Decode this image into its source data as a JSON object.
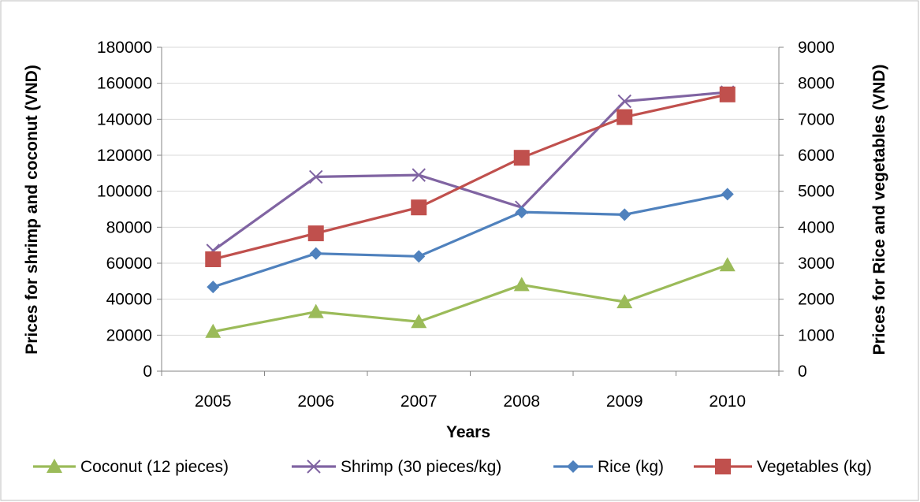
{
  "chart_data": {
    "type": "line",
    "title": "",
    "xlabel": "Years",
    "ylabel_left": "Prices for shrimp and coconut (VND)",
    "ylabel_right": "Prices for Rice and vegetables (VND)",
    "categories": [
      "2005",
      "2006",
      "2007",
      "2008",
      "2009",
      "2010"
    ],
    "ylim_left": [
      0,
      180000
    ],
    "ylim_right": [
      0,
      9000
    ],
    "yticks_left": [
      "0",
      "20000",
      "40000",
      "60000",
      "80000",
      "100000",
      "120000",
      "140000",
      "160000",
      "180000"
    ],
    "yticks_right": [
      "0",
      "1000",
      "2000",
      "3000",
      "4000",
      "5000",
      "6000",
      "7000",
      "8000",
      "9000"
    ],
    "grid": true,
    "legend_position": "bottom",
    "series": [
      {
        "name": "Coconut (12 pieces)",
        "axis": "left",
        "color": "#9BBB59",
        "marker": "triangle",
        "values": [
          22000,
          33000,
          27500,
          48000,
          38500,
          59000
        ]
      },
      {
        "name": "Shrimp (30 pieces/kg)",
        "axis": "left",
        "color": "#8064A2",
        "marker": "x",
        "values": [
          67000,
          108000,
          109000,
          91000,
          150000,
          155000
        ]
      },
      {
        "name": "Rice (kg)",
        "axis": "right",
        "color": "#4F81BD",
        "marker": "diamond",
        "values": [
          2340,
          3270,
          3190,
          4420,
          4350,
          4920
        ]
      },
      {
        "name": "Vegetables (kg)",
        "axis": "right",
        "color": "#C0504D",
        "marker": "square",
        "values": [
          3110,
          3830,
          4550,
          5930,
          7060,
          7690
        ]
      }
    ]
  }
}
